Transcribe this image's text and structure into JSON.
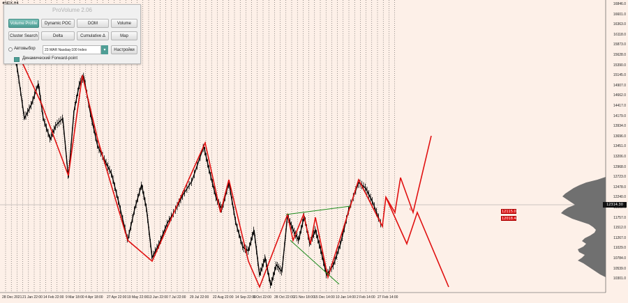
{
  "symbol": "#NDX,H4",
  "panel": {
    "title": "ProVolume 2.06",
    "buttons": [
      {
        "label": "Volume Profile",
        "active": true
      },
      {
        "label": "Dynamic POC",
        "active": false
      },
      {
        "label": "DOM",
        "active": false
      },
      {
        "label": "Volume",
        "active": false
      },
      {
        "label": "Cluster Search",
        "active": false
      },
      {
        "label": "Delta",
        "active": false
      },
      {
        "label": "Cumulative Δ",
        "active": false
      },
      {
        "label": "Map",
        "active": false
      }
    ],
    "auto_label": "Автовыбор",
    "symbol_value": "23 MAR Nasdaq-100 Index",
    "settings_label": "Настройки",
    "forward_label": "Динамический Forward-point"
  },
  "y_axis": [
    "16846.0",
    "16601.0",
    "16363.0",
    "16118.0",
    "15873.0",
    "15628.0",
    "15390.0",
    "15145.0",
    "14907.0",
    "14662.0",
    "14417.0",
    "14179.0",
    "13934.0",
    "13696.0",
    "13451.0",
    "13206.0",
    "12968.0",
    "12723.0",
    "12478.0",
    "12240.0",
    "11995.0",
    "11757.0",
    "11512.0",
    "11267.0",
    "11029.0",
    "10784.0",
    "10539.0",
    "10301.0"
  ],
  "x_axis": [
    "28 Dec 2021",
    "21 Jan 22:00",
    "14 Feb 22:00",
    "9 Mar 18:00",
    "4 Apr 18:00",
    "27 Apr 22:00",
    "19 May 22:00",
    "13 Jun 22:00",
    "7 Jul 22:00",
    "29 Jul 22:00",
    "22 Aug 22:00",
    "14 Sep 22:00",
    "6 Oct 22:00",
    "28 Oct 22:00",
    "21 Nov 18:00",
    "15 Dec 14:00",
    "10 Jan 14:00",
    "2 Feb 14:00",
    "27 Feb 14:00"
  ],
  "price_tags": [
    "12115.03",
    "12018.44"
  ],
  "current_price": "12314.30",
  "colors": {
    "background": "#fdf0e8",
    "zigzag": "#e01010",
    "channel": "#1a8a1a",
    "profile": "#707070",
    "accent": "#4f9e95"
  }
}
